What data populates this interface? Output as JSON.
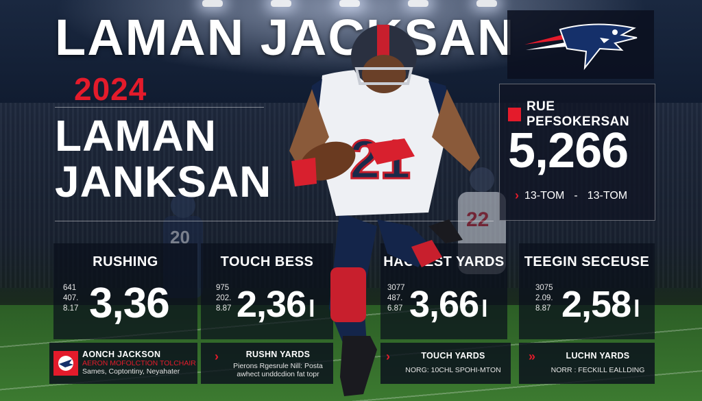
{
  "hero": {
    "title_top": "LAMAN JACKSAN",
    "year": "2024",
    "title_line1": "LAMAN",
    "title_line2": "JANKSAN"
  },
  "colors": {
    "accent_red": "#e41b2b",
    "navy": "#0b1a3a",
    "white": "#ffffff"
  },
  "team_logo": {
    "icon": "patriot-flying-logo"
  },
  "player": {
    "jersey_number": "21",
    "background_jersey_1": "22",
    "background_jersey_2": "20"
  },
  "performance": {
    "label": "RUE PEFSOKERSAN",
    "value": "5,266",
    "range_from": "13-TOM",
    "range_sep": "-",
    "range_to": "13-TOM"
  },
  "stat_cards": [
    {
      "label": "RUSHING",
      "mini": [
        "641",
        "407.",
        "8.17"
      ],
      "value": "3,36"
    },
    {
      "label": "TOUCH BESS",
      "mini": [
        "975",
        "202.",
        "8.87"
      ],
      "value": "2,36",
      "suffix": "l"
    },
    {
      "label": "HACREST YARDS",
      "mini": [
        "3077",
        "487.",
        "6.87"
      ],
      "value": "3,66",
      "suffix": "l"
    },
    {
      "label": "TEEGIN SECEUSE",
      "mini": [
        "3075",
        "2.09.",
        "8.87"
      ],
      "value": "2,58",
      "suffix": "l"
    }
  ],
  "bottom": [
    {
      "title": "AONCH JACKSON",
      "line1": "AERON MOFOLCTION TOLCHAIR",
      "line2": "Sames, Coptontiny, Neyahater"
    },
    {
      "title": "RUSHN YARDS",
      "line1": "Pierons Rgesrule Nill: Posta",
      "line2": "awhect unddcdion fat topr"
    },
    {
      "title": "TOUCH YARDS",
      "line1": "NORG: 10CHL SPOHI-MTON"
    },
    {
      "title": "LUCHN YARDS",
      "line1": "NORR : FECKILL EALLDING"
    }
  ]
}
